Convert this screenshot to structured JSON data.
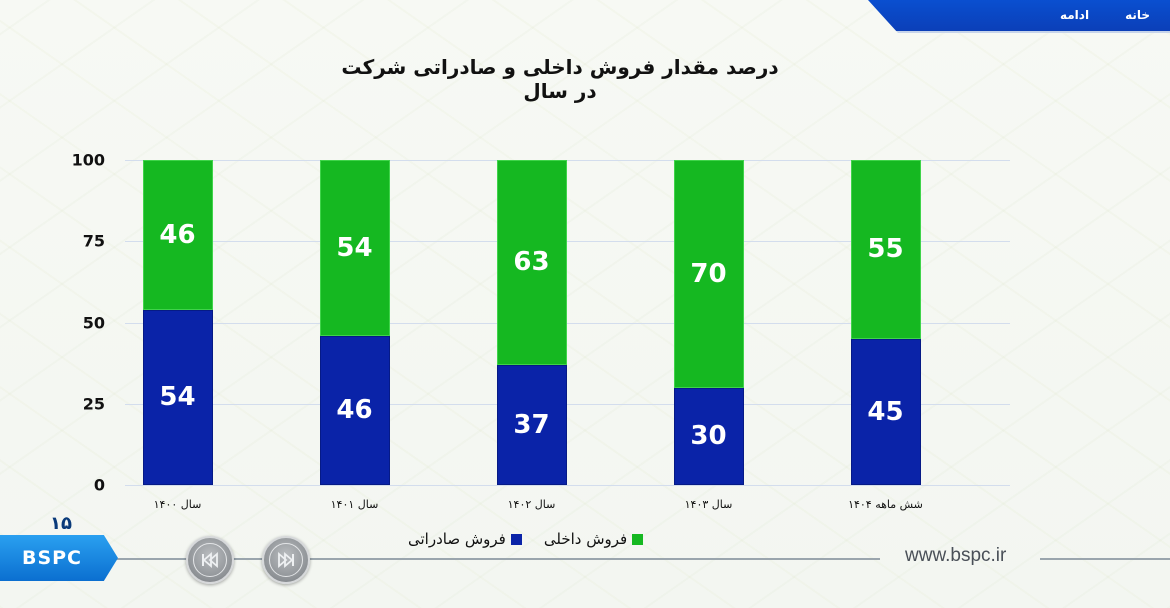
{
  "header": {
    "nav": [
      {
        "label": "خانه"
      },
      {
        "label": "ادامه"
      }
    ]
  },
  "slide": {
    "title": "درصد مقدار فروش داخلی و صادراتی شرکت در سال",
    "page_number": "۱۵",
    "logo_text": "BSPC",
    "website": "www.bspc.ir",
    "controls": {
      "prev_icon": "rewind-icon",
      "next_icon": "fast-forward-icon"
    }
  },
  "legend": [
    {
      "label": "فروش صادراتی",
      "color": "#0a23a8"
    },
    {
      "label": "فروش داخلی",
      "color": "#15b821"
    }
  ],
  "yticks": [
    "0",
    "25",
    "50",
    "75",
    "100"
  ],
  "chart_data": {
    "type": "bar",
    "stacked": true,
    "title": "درصد مقدار فروش داخلی و صادراتی شرکت در سال",
    "xlabel": "",
    "ylabel": "",
    "ylim": [
      0,
      100
    ],
    "yticks": [
      0,
      25,
      50,
      75,
      100
    ],
    "grid": true,
    "legend_position": "bottom",
    "categories": [
      "سال ۱۴۰۰",
      "سال ۱۴۰۱",
      "سال ۱۴۰۲",
      "سال ۱۴۰۳",
      "شش ماهه ۱۴۰۴"
    ],
    "series": [
      {
        "name": "فروش صادراتی",
        "color": "#0a23a8",
        "values": [
          54,
          46,
          37,
          30,
          45
        ]
      },
      {
        "name": "فروش داخلی",
        "color": "#15b821",
        "values": [
          46,
          54,
          63,
          70,
          55
        ]
      }
    ]
  }
}
